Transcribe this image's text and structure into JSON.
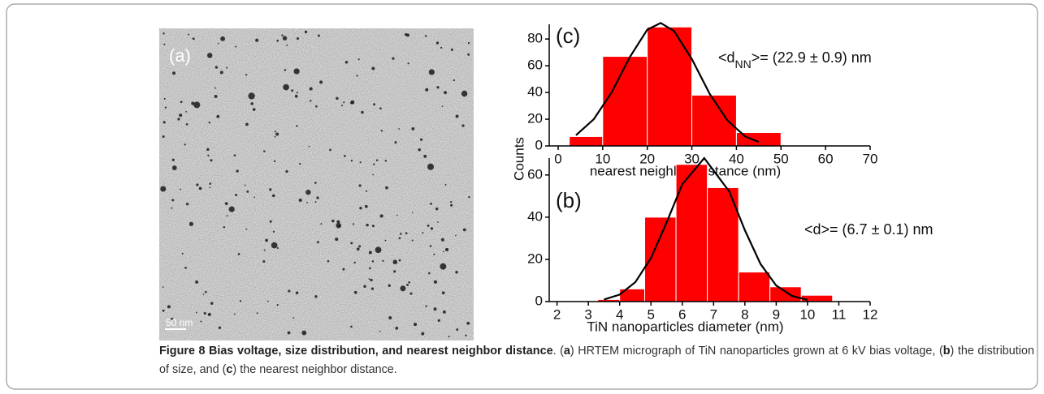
{
  "figure": {
    "micrograph": {
      "panel_label": "(a)",
      "scale_label": "50 nm"
    },
    "shared_ylabel": "Counts",
    "caption": [
      {
        "text": "Figure 8 Bias voltage, size distribution, and nearest neighbor distance",
        "bold": true
      },
      {
        "text": ". (",
        "bold": false
      },
      {
        "text": "a",
        "bold": true
      },
      {
        "text": ") HRTEM micrograph of TiN nanoparticles grown at 6 kV bias voltage, (",
        "bold": false
      },
      {
        "text": "b",
        "bold": true
      },
      {
        "text": ") the distribution of size, and (",
        "bold": false
      },
      {
        "text": "c",
        "bold": true
      },
      {
        "text": ") the nearest neighbor distance.",
        "bold": false
      }
    ]
  },
  "chart_data": [
    {
      "type": "histogram",
      "panel_label": "(c)",
      "xlabel": "nearest neighbor distance (nm)",
      "annotation": {
        "prefix": "<d",
        "sub": "NN",
        "suffix": ">= (22.9 ± 0.9) nm"
      },
      "bins": [
        2.5,
        10,
        20,
        30,
        40,
        50
      ],
      "values": [
        7,
        67,
        89,
        38,
        10
      ],
      "color": "#ff0000",
      "curve": {
        "color": "#000000",
        "x": [
          4,
          8,
          12,
          16,
          20,
          23,
          26,
          30,
          34,
          38,
          42,
          45
        ],
        "y": [
          8,
          20,
          40,
          66,
          87,
          92,
          86,
          65,
          39,
          19,
          7,
          3
        ]
      },
      "xlim": [
        -2,
        70
      ],
      "xticks": [
        0,
        10,
        20,
        30,
        40,
        50,
        60,
        70
      ],
      "ylim": [
        0,
        91
      ],
      "yticks": [
        0,
        20,
        40,
        60,
        80
      ]
    },
    {
      "type": "histogram",
      "panel_label": "(b)",
      "xlabel": "TiN nanoparticles diameter (nm)",
      "annotation": {
        "prefix": "<d",
        "sub": "",
        "suffix": ">= (6.7 ± 0.1) nm"
      },
      "bins": [
        3.3,
        4.0,
        4.8,
        5.8,
        6.8,
        7.8,
        8.8,
        9.8,
        10.8
      ],
      "values": [
        1,
        6,
        40,
        65,
        54,
        14,
        7,
        3
      ],
      "color": "#ff0000",
      "curve": {
        "color": "#000000",
        "x": [
          3.5,
          4,
          4.5,
          5,
          5.5,
          6,
          6.7,
          7.5,
          8,
          8.5,
          9,
          9.5,
          10
        ],
        "y": [
          1,
          3.3,
          9.2,
          20.6,
          37.5,
          55.6,
          68,
          52.2,
          33.8,
          17.8,
          7.6,
          2.7,
          0.8
        ]
      },
      "xlim": [
        1.75,
        12
      ],
      "xticks": [
        2,
        3,
        4,
        5,
        6,
        7,
        8,
        9,
        10,
        11,
        12
      ],
      "ylim": [
        0,
        68
      ],
      "yticks": [
        0,
        20,
        40,
        60
      ]
    }
  ]
}
